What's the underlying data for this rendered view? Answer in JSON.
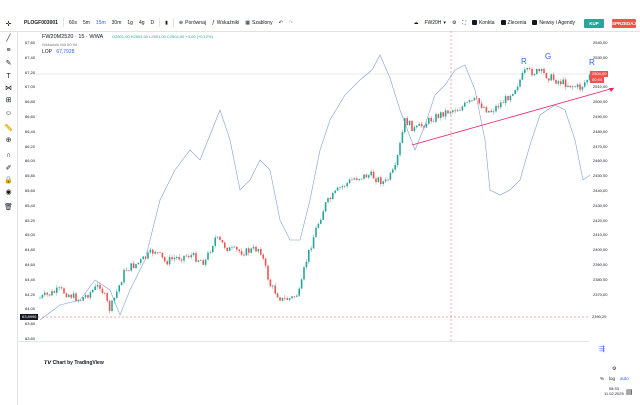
{
  "toolbar": {
    "symbol": "PLOGF003001",
    "intervals": [
      "60s",
      "5m",
      "15m",
      "30m",
      "1g",
      "4g",
      "D"
    ],
    "active_interval": "15m",
    "compare_label": "Porównaj",
    "indicators_label": "Wskaźniki",
    "templates_label": "Szablony",
    "account_label": "FW20H",
    "filters": [
      "Konkta",
      "Zlecenia",
      "Newsy i Agendy"
    ],
    "buy_label": "KUP",
    "sell_label": "SPRZEDAJ"
  },
  "legend": {
    "title": "FW20M2520 · 15 · WWA",
    "ohlc": "O2501,00 H2504,00 L2501,00 C2504,00 +3,00 (+0,12%)",
    "sub": "Wskaźnik MA 50 5d",
    "lop_label": "LOP",
    "lop_value": "67,7928"
  },
  "left_axis": {
    "ticks": [
      "67,60",
      "67,40",
      "67,20",
      "67,00",
      "66,80",
      "66,60",
      "66,40",
      "66,20",
      "66,00",
      "65,80",
      "65,60",
      "65,40",
      "65,20",
      "65,00",
      "64,80",
      "64,60",
      "64,40",
      "64,20",
      "64,00",
      "63,80",
      "63,60"
    ],
    "marker": "63,8996"
  },
  "price_axis": {
    "ticks": [
      "2540,00",
      "2530,00",
      "2520,00",
      "2510,00",
      "2500,00",
      "2490,00",
      "2480,00",
      "2470,00",
      "2460,00",
      "2450,00",
      "2440,00",
      "2430,00",
      "2420,00",
      "2410,00",
      "2400,00",
      "2390,00",
      "2380,00",
      "2370,00"
    ],
    "current_price": "2504,00",
    "current_sub": "00:44",
    "low_marker": "2390,29"
  },
  "wave_labels": [
    "R",
    "G",
    "R"
  ],
  "footer": {
    "tv_logo": "Chart by TradingView",
    "log_options": [
      "%",
      "log",
      "auto"
    ],
    "clock_time": "08:33",
    "clock_date": "11.02.2025"
  },
  "colors": {
    "up": "#26a69a",
    "down": "#ef5350",
    "line": "#7f9ed8",
    "trend": "#e91e63"
  }
}
